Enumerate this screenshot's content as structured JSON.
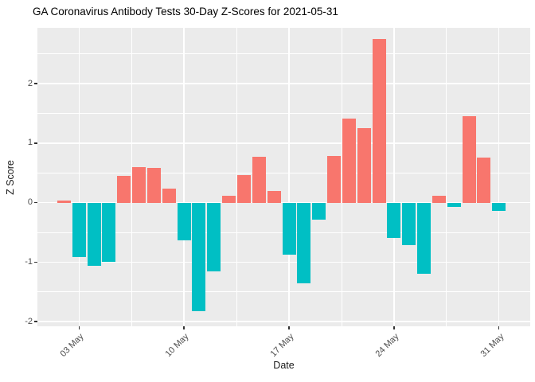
{
  "title": "GA Coronavirus Antibody Tests 30-Day Z-Scores for 2021-05-31",
  "chart_data": {
    "type": "bar",
    "title": "GA Coronavirus Antibody Tests 30-Day Z-Scores for 2021-05-31",
    "xlabel": "Date",
    "ylabel": "Z Score",
    "x_tick_labels": [
      "03 May",
      "10 May",
      "17 May",
      "24 May",
      "31 May"
    ],
    "x_tick_day_indices": [
      1,
      8,
      15,
      22,
      29
    ],
    "y_ticks": [
      -2,
      -1,
      0,
      1,
      2
    ],
    "y_tick_labels": [
      "-2",
      "-1",
      "0",
      "1",
      "2"
    ],
    "ylim": [
      -2.08,
      2.94
    ],
    "n_days": 30,
    "values": [
      0.04,
      -0.91,
      -1.06,
      -1.0,
      0.45,
      0.6,
      0.59,
      0.23,
      -0.64,
      -1.82,
      -1.15,
      0.11,
      0.46,
      0.77,
      0.2,
      -0.87,
      -1.36,
      -0.29,
      0.78,
      1.41,
      1.25,
      2.75,
      -0.6,
      -0.72,
      -1.2,
      0.11,
      -0.07,
      1.45,
      0.76,
      -0.14
    ],
    "grid": "major+minor",
    "legend_position": "none",
    "colors": {
      "positive_bar": "#F8766D",
      "negative_bar": "#00BFC4",
      "panel_background": "#EBEBEB",
      "gridline": "#FFFFFF",
      "tick_text": "#4D4D4D",
      "axis_title_text": "#1a1a1a",
      "tick_mark": "#333333"
    }
  }
}
